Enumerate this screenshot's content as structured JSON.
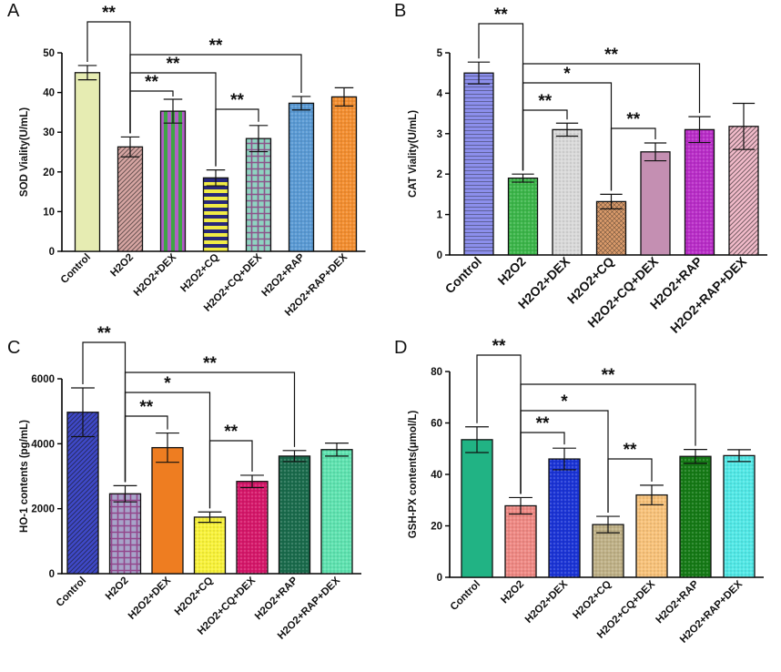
{
  "figure": {
    "panels": [
      "A",
      "B",
      "C",
      "D"
    ]
  },
  "chart_data": [
    {
      "panel_label": "A",
      "type": "bar",
      "title": "",
      "xlabel": "",
      "ylabel": "SOD Viality(U/mL)",
      "ylim": [
        0,
        50
      ],
      "yticks": [
        0,
        10,
        20,
        30,
        40,
        50
      ],
      "grid": false,
      "categories": [
        "Control",
        "H2O2",
        "H2O2+DEX",
        "H2O2+CQ",
        "H2O2+CQ+DEX",
        "H2O2+RAP",
        "H2O2+RAP+DEX"
      ],
      "values": [
        45,
        26.3,
        35.3,
        18.5,
        28.4,
        37.3,
        38.9
      ],
      "errors": [
        1.8,
        2.5,
        3,
        2,
        3.3,
        1.7,
        2.3
      ],
      "colors": [
        "#e6ecb2",
        "#d7a6a3",
        "#b15ec6",
        "#f1ec45",
        "#8fd3c1",
        "#5a9ad4",
        "#f38e30"
      ],
      "patterns": [
        "solid",
        "diag",
        "vstripe",
        "hstripe",
        "grid",
        "dots",
        "dots"
      ],
      "significance": [
        {
          "from": 0,
          "to": 1,
          "label": "**"
        },
        {
          "from": 1,
          "to": 5,
          "label": "**"
        },
        {
          "from": 1,
          "to": 3,
          "label": "**"
        },
        {
          "from": 1,
          "to": 2,
          "label": "**"
        },
        {
          "from": 3,
          "to": 4,
          "label": "**"
        }
      ]
    },
    {
      "panel_label": "B",
      "type": "bar",
      "title": "",
      "xlabel": "",
      "ylabel": "CAT  Viality(U/mL)",
      "ylim": [
        0,
        5
      ],
      "yticks": [
        0,
        1,
        2,
        3,
        4,
        5
      ],
      "grid": false,
      "categories": [
        "Control",
        "H2O2",
        "H2O2+DEX",
        "H2O2+CQ",
        "H2O2+CQ+DEX",
        "H2O2+RAP",
        "H2O2+RAP+DEX"
      ],
      "values": [
        4.5,
        1.9,
        3.1,
        1.32,
        2.55,
        3.1,
        3.18
      ],
      "errors": [
        0.27,
        0.1,
        0.16,
        0.18,
        0.22,
        0.32,
        0.57
      ],
      "colors": [
        "#8c8fec",
        "#3cb64a",
        "#d9d9d9",
        "#d99a6a",
        "#c48fb2",
        "#b92dc8",
        "#f3bccb"
      ],
      "patterns": [
        "hline",
        "dots",
        "dots",
        "crosshatch",
        "solid",
        "dots",
        "diag"
      ],
      "significance": [
        {
          "from": 0,
          "to": 1,
          "label": "**"
        },
        {
          "from": 1,
          "to": 5,
          "label": "**"
        },
        {
          "from": 1,
          "to": 3,
          "label": "*"
        },
        {
          "from": 1,
          "to": 2,
          "label": "**"
        },
        {
          "from": 3,
          "to": 4,
          "label": "**"
        }
      ]
    },
    {
      "panel_label": "C",
      "type": "bar",
      "title": "",
      "xlabel": "",
      "ylabel": "HO-1 contents (pg/mL)",
      "ylim": [
        0,
        6000
      ],
      "yticks": [
        0,
        2000,
        4000,
        6000
      ],
      "grid": false,
      "categories": [
        "Control",
        "H2O2",
        "H2O2+DEX",
        "H2O2+CQ",
        "H2O2+CQ+DEX",
        "H2O2+RAP",
        "H2O2+RAP+DEX"
      ],
      "values": [
        4970,
        2460,
        3880,
        1740,
        2840,
        3620,
        3820
      ],
      "errors": [
        750,
        250,
        450,
        160,
        190,
        170,
        200
      ],
      "colors": [
        "#3f49c9",
        "#a7a4c9",
        "#ee7d21",
        "#f8f23a",
        "#d6176a",
        "#1a6b4c",
        "#5fe3b0"
      ],
      "patterns": [
        "diag",
        "grid",
        "solid",
        "dots",
        "dots",
        "dots",
        "dots"
      ],
      "significance": [
        {
          "from": 0,
          "to": 1,
          "label": "**"
        },
        {
          "from": 1,
          "to": 5,
          "label": "**"
        },
        {
          "from": 1,
          "to": 3,
          "label": "*"
        },
        {
          "from": 1,
          "to": 2,
          "label": "**"
        },
        {
          "from": 3,
          "to": 4,
          "label": "**"
        }
      ]
    },
    {
      "panel_label": "D",
      "type": "bar",
      "title": "",
      "xlabel": "",
      "ylabel": "GSH-PX contents(μmol/L)",
      "ylim": [
        0,
        80
      ],
      "yticks": [
        0,
        20,
        40,
        60,
        80
      ],
      "grid": false,
      "categories": [
        "Control",
        "H2O2",
        "H2O2+DEX",
        "H2O2+CQ",
        "H2O2+CQ+DEX",
        "H2O2+RAP",
        "H2O2+RAP+DEX"
      ],
      "values": [
        53.5,
        27.8,
        46,
        20.5,
        32,
        47,
        47.3
      ],
      "errors": [
        5,
        3.2,
        4.2,
        3.2,
        3.8,
        2.7,
        2.3
      ],
      "colors": [
        "#21b384",
        "#ef8984",
        "#1b34d6",
        "#bfb187",
        "#f8c27a",
        "#157a16",
        "#52e8e6"
      ],
      "patterns": [
        "solid",
        "dots",
        "dots",
        "dots",
        "dots",
        "dots",
        "dots"
      ],
      "significance": [
        {
          "from": 0,
          "to": 1,
          "label": "**"
        },
        {
          "from": 1,
          "to": 5,
          "label": "**"
        },
        {
          "from": 1,
          "to": 3,
          "label": "*"
        },
        {
          "from": 1,
          "to": 2,
          "label": "**"
        },
        {
          "from": 3,
          "to": 4,
          "label": "**"
        }
      ]
    }
  ]
}
